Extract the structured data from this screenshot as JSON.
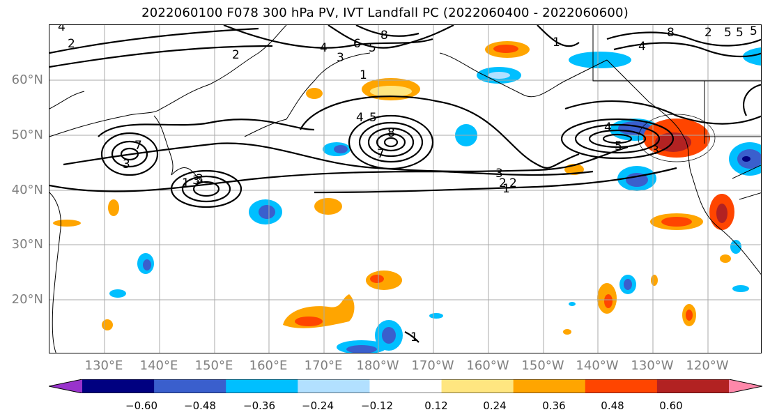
{
  "title": "2022060100 F078 300 hPa PV, IVT Landfall PC (2022060400 - 2022060600)",
  "lat_labels": [
    "60°N",
    "50°N",
    "40°N",
    "30°N",
    "20°N"
  ],
  "lon_labels": [
    "130°E",
    "140°E",
    "150°E",
    "160°E",
    "170°E",
    "180°W",
    "170°W",
    "160°W",
    "150°W",
    "140°W",
    "130°W",
    "120°W"
  ],
  "colorbar": {
    "colors": [
      "#9933cc",
      "#000080",
      "#3a5fcd",
      "#00bfff",
      "#b2e0ff",
      "#ffffff",
      "#ffe680",
      "#ffa500",
      "#ff4500",
      "#b22222",
      "#ff88aa"
    ],
    "tick_labels": [
      "−0.60",
      "−0.48",
      "−0.36",
      "−0.24",
      "−0.12",
      "0.12",
      "0.24",
      "0.36",
      "0.48",
      "0.60"
    ]
  },
  "contour_labels": [
    "4",
    "2",
    "2",
    "8",
    "4",
    "3",
    "6",
    "5",
    "1",
    "2",
    "5",
    "5",
    "4",
    "8",
    "3",
    "1",
    "7",
    "3",
    "2",
    "1",
    "4",
    "5",
    "8",
    "7",
    "3",
    "1",
    "3",
    "2",
    "1",
    "4",
    "5",
    "3",
    "5",
    "1"
  ]
}
